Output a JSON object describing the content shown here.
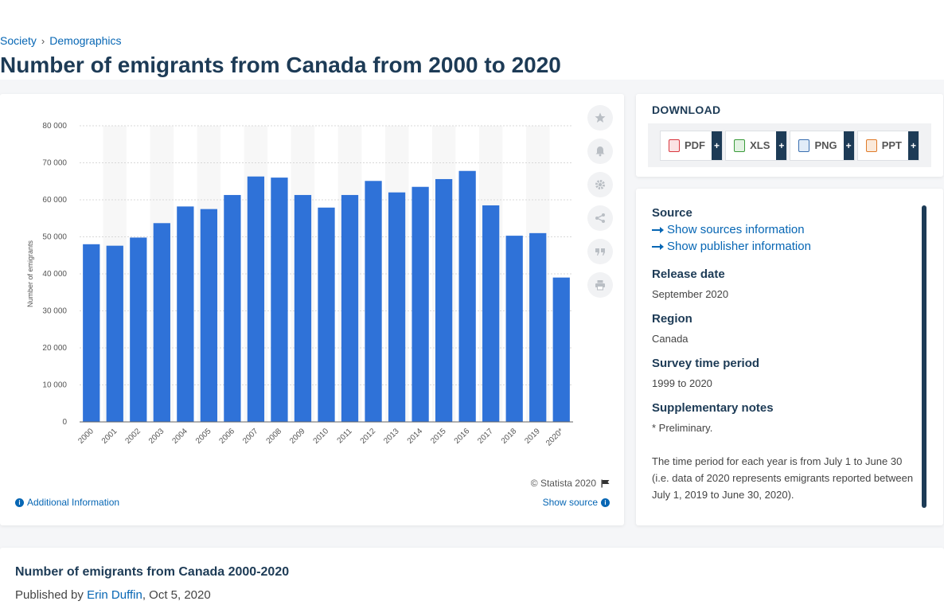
{
  "breadcrumb": {
    "items": [
      "Society",
      "Demographics"
    ],
    "separator": "›"
  },
  "page_title": "Number of emigrants from Canada from 2000 to 2020",
  "chart_data": {
    "type": "bar",
    "categories": [
      "2000",
      "2001",
      "2002",
      "2003",
      "2004",
      "2005",
      "2006",
      "2007",
      "2008",
      "2009",
      "2010",
      "2011",
      "2012",
      "2013",
      "2014",
      "2015",
      "2016",
      "2017",
      "2018",
      "2019",
      "2020*"
    ],
    "values": [
      48000,
      47600,
      49800,
      53700,
      58200,
      57500,
      61300,
      66300,
      66000,
      61300,
      57900,
      61300,
      65100,
      62000,
      63500,
      65600,
      67800,
      58500,
      50300,
      51000,
      39000
    ],
    "ylabel": "Number of emigrants",
    "xlabel": "",
    "ylim": [
      0,
      80000
    ],
    "yticks": [
      0,
      10000,
      20000,
      30000,
      40000,
      50000,
      60000,
      70000,
      80000
    ],
    "ytick_labels": [
      "0",
      "10 000",
      "20 000",
      "30 000",
      "40 000",
      "50 000",
      "60 000",
      "70 000",
      "80 000"
    ],
    "grid": true,
    "bar_color": "#2f72d8"
  },
  "chart_footer": {
    "copyright": "© Statista 2020",
    "additional_info": "Additional Information",
    "show_source": "Show source",
    "info_icon": "info-circle-icon",
    "flag_icon": "flag-icon"
  },
  "tools": [
    "star-icon",
    "bell-icon",
    "gear-icon",
    "share-icon",
    "quote-icon",
    "print-icon"
  ],
  "download": {
    "title": "DOWNLOAD",
    "buttons": [
      {
        "label": "PDF",
        "icon": "pdf-file-icon",
        "color": "#d9363e"
      },
      {
        "label": "XLS",
        "icon": "xls-file-icon",
        "color": "#3a9b3a"
      },
      {
        "label": "PNG",
        "icon": "png-file-icon",
        "color": "#3a6fb0"
      },
      {
        "label": "PPT",
        "icon": "ppt-file-icon",
        "color": "#e07b2a"
      }
    ],
    "plus": "+"
  },
  "source": {
    "heading": "Source",
    "links": [
      "Show sources information",
      "Show publisher information"
    ],
    "release_date_label": "Release date",
    "release_date": "September 2020",
    "region_label": "Region",
    "region": "Canada",
    "survey_period_label": "Survey time period",
    "survey_period": "1999 to 2020",
    "notes_label": "Supplementary notes",
    "notes_1": "* Preliminary.",
    "notes_2": "The time period for each year is from July 1 to June 30 (i.e. data of 2020 represents emigrants reported between July 1, 2019 to June 30, 2020)."
  },
  "bottom": {
    "title": "Number of emigrants from Canada 2000-2020",
    "published_by": "Published by",
    "author": "Erin Duffin",
    "date": ", Oct 5, 2020"
  }
}
